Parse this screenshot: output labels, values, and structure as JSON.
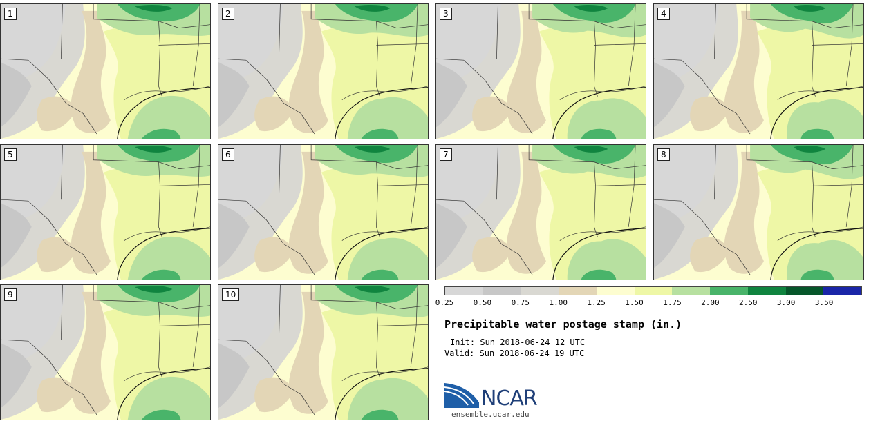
{
  "panels": [
    {
      "label": "1"
    },
    {
      "label": "2"
    },
    {
      "label": "3"
    },
    {
      "label": "4"
    },
    {
      "label": "5"
    },
    {
      "label": "6"
    },
    {
      "label": "7"
    },
    {
      "label": "8"
    },
    {
      "label": "9"
    },
    {
      "label": "10"
    }
  ],
  "colorbar": {
    "colors": [
      "#d7d7d7",
      "#c7c7c7",
      "#d9d8d2",
      "#e3d6b6",
      "#fdfdd0",
      "#eef7a6",
      "#b7e0a0",
      "#49b46a",
      "#10843f",
      "#06562a",
      "#1a26a8"
    ],
    "ticks": [
      "0.25",
      "0.50",
      "0.75",
      "1.00",
      "1.25",
      "1.50",
      "1.75",
      "2.00",
      "2.50",
      "3.00",
      "3.50"
    ]
  },
  "title": "Precipitable water postage stamp (in.)",
  "init": "Init: Sun 2018-06-24 12 UTC",
  "valid": "Valid: Sun 2018-06-24 19 UTC",
  "logo_text": "NCAR",
  "site": "ensemble.ucar.edu"
}
